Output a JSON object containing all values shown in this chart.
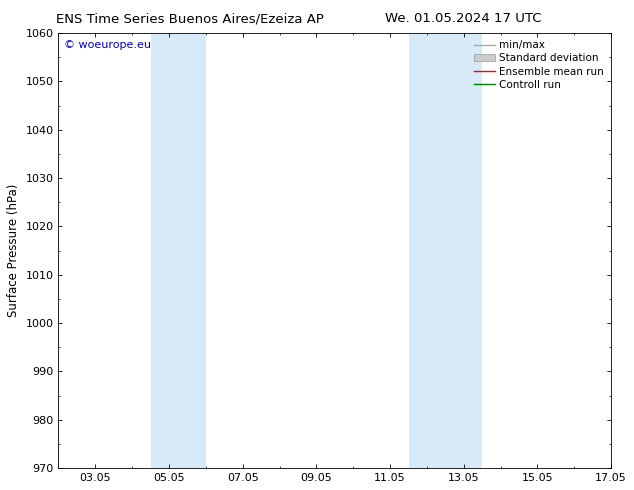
{
  "title_left": "ENS Time Series Buenos Aires/Ezeiza AP",
  "title_right": "We. 01.05.2024 17 UTC",
  "ylabel": "Surface Pressure (hPa)",
  "ylim": [
    970,
    1060
  ],
  "yticks": [
    970,
    980,
    990,
    1000,
    1010,
    1020,
    1030,
    1040,
    1050,
    1060
  ],
  "xlim": [
    0,
    15
  ],
  "xtick_labels": [
    "03.05",
    "05.05",
    "07.05",
    "09.05",
    "11.05",
    "13.05",
    "15.05",
    "17.05"
  ],
  "xtick_positions": [
    1.0,
    3.0,
    5.0,
    7.0,
    9.0,
    11.0,
    13.0,
    15.0
  ],
  "shade_bands": [
    {
      "x_start": 2.5,
      "x_end": 4.0
    },
    {
      "x_start": 9.5,
      "x_end": 11.5
    }
  ],
  "shade_color": "#d6eaf8",
  "background_color": "#ffffff",
  "watermark_text": "© woeurope.eu",
  "watermark_color": "#0000cc",
  "legend_entries": [
    {
      "label": "min/max",
      "color": "#aaaaaa",
      "lw": 1.0,
      "type": "line"
    },
    {
      "label": "Standard deviation",
      "color": "#cccccc",
      "lw": 6,
      "type": "band"
    },
    {
      "label": "Ensemble mean run",
      "color": "#ff0000",
      "lw": 1.0,
      "type": "line"
    },
    {
      "label": "Controll run",
      "color": "#008000",
      "lw": 1.0,
      "type": "line"
    }
  ],
  "title_fontsize": 9.5,
  "axis_label_fontsize": 8.5,
  "tick_fontsize": 8,
  "legend_fontsize": 7.5,
  "watermark_fontsize": 8
}
